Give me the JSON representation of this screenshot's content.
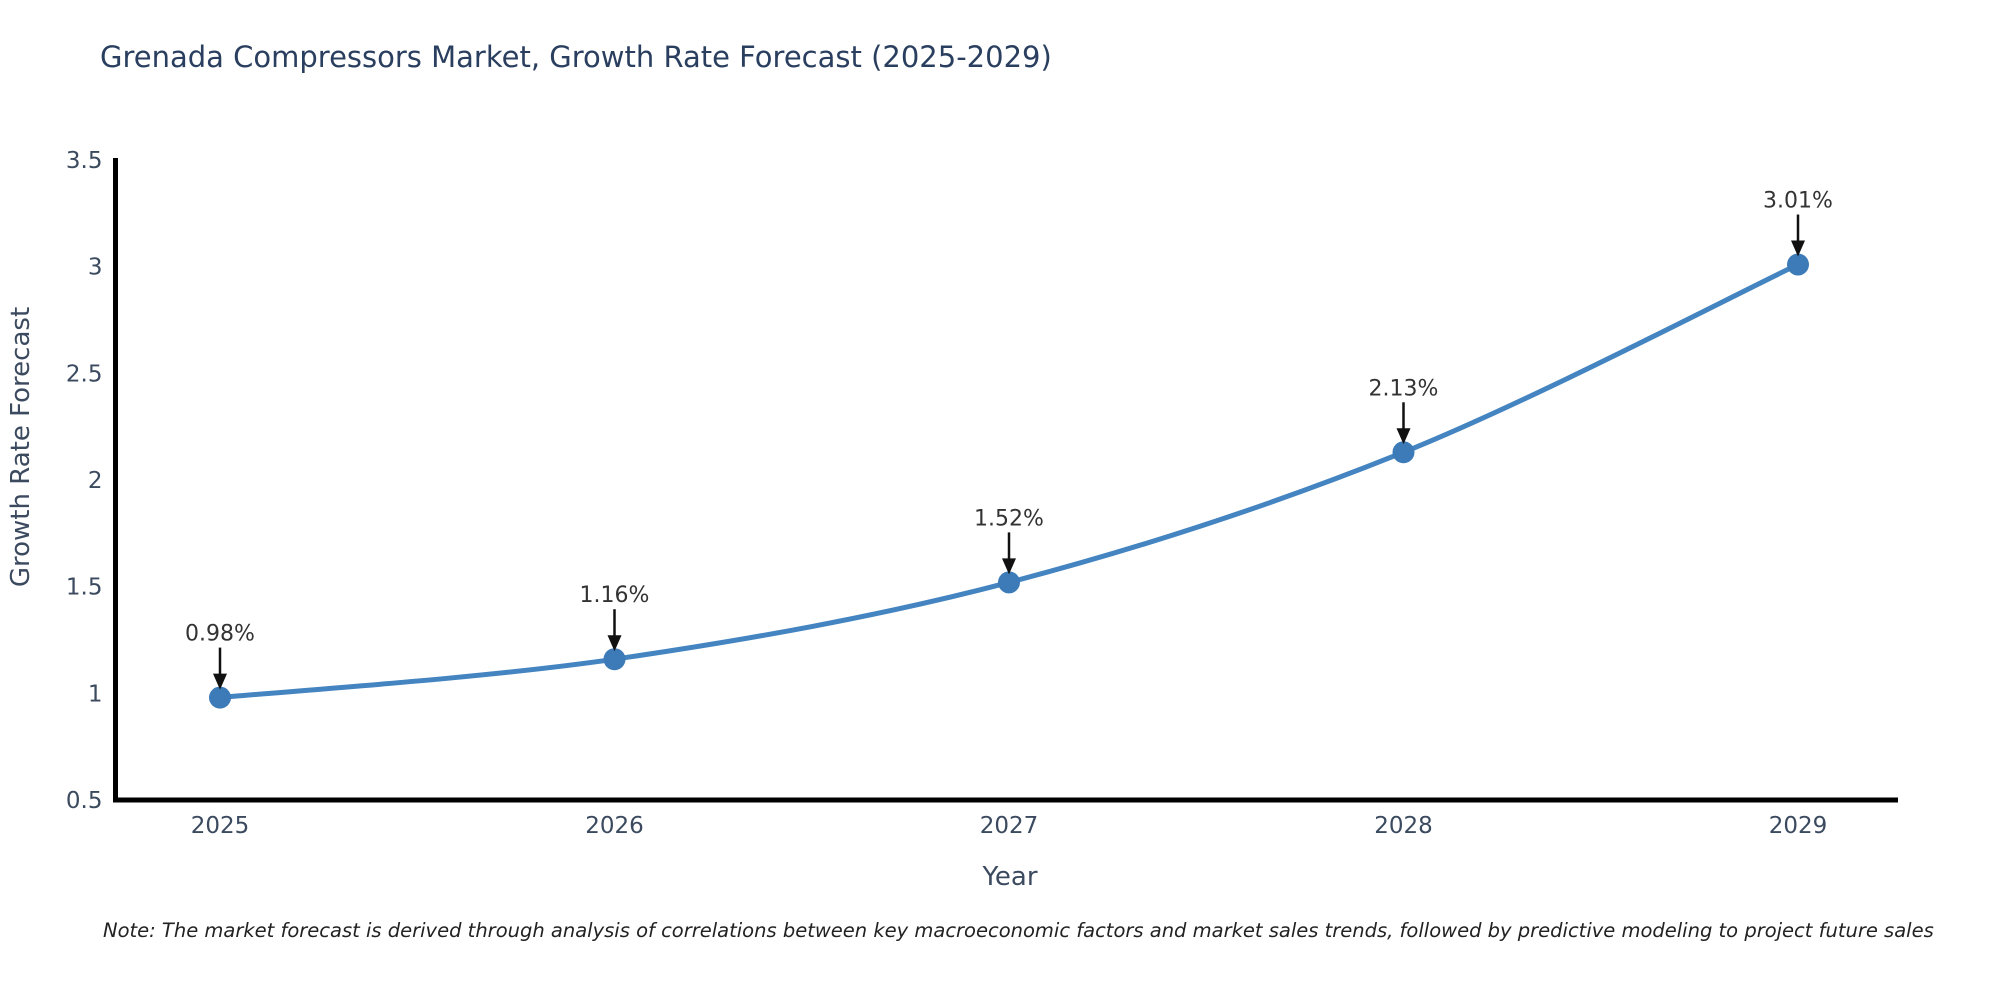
{
  "title": "Grenada Compressors Market, Growth Rate Forecast (2025-2029)",
  "note": "Note: The market forecast is derived through analysis of correlations between key macroeconomic factors and market sales trends, followed by predictive modeling to project future sales",
  "chart_data": {
    "type": "line",
    "x": [
      2025,
      2026,
      2027,
      2028,
      2029
    ],
    "values": [
      0.98,
      1.16,
      1.52,
      2.13,
      3.01
    ],
    "point_labels": [
      "0.98%",
      "1.16%",
      "1.52%",
      "2.13%",
      "3.01%"
    ],
    "series_name": "Growth Rate Forecast",
    "title": "Grenada Compressors Market, Growth Rate Forecast (2025-2029)",
    "xlabel": "Year",
    "ylabel": "Growth Rate Forecast",
    "yticks": [
      0.5,
      1,
      1.5,
      2,
      2.5,
      3,
      3.5
    ],
    "ylim": [
      0.5,
      3.5
    ],
    "grid": false,
    "legend": false,
    "smooth": true,
    "annotations": "black arrows pointing down to each data point with percentage labels",
    "colors": {
      "line": "#4384c1",
      "marker": "#3c7ab8",
      "axis": "#000000",
      "title_text": "#2a3f5f",
      "tick_text": "#3b4a5f",
      "point_label_text": "#333333",
      "arrow": "#111111",
      "background": "#ffffff"
    }
  }
}
